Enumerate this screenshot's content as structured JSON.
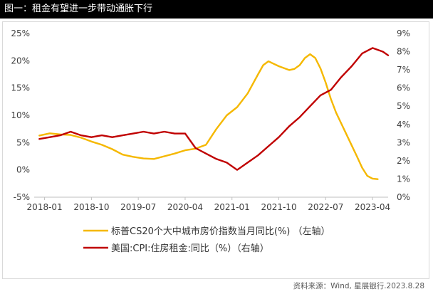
{
  "figure": {
    "title": "图一：租金有望进一步带动通胀下行",
    "source": "资料来源：Wind, 星展银行.2023.8.28"
  },
  "colors": {
    "cs20": "#F5B800",
    "cpi_rent": "#C00000",
    "axis": "#bfbfbf"
  },
  "chart_data": {
    "type": "line",
    "x_tick_labels": [
      "2018-01",
      "2018-10",
      "2019-07",
      "2020-04",
      "2021-01",
      "2021-10",
      "2022-07",
      "2023-04"
    ],
    "x_range": [
      "2017-11",
      "2023-07"
    ],
    "y_left": {
      "ticks": [
        "25%",
        "20%",
        "15%",
        "10%",
        "5%",
        "0%",
        "-5%"
      ],
      "ylim": [
        -5,
        25
      ]
    },
    "y_right": {
      "ticks": [
        "9%",
        "8%",
        "7%",
        "6%",
        "5%",
        "4%",
        "3%",
        "2%",
        "1%",
        "0%"
      ],
      "ylim": [
        0,
        9
      ]
    },
    "grid": false,
    "legend_position": "bottom",
    "series": [
      {
        "name": "标普CS20个大中城市房价指数当月同比(%) （左轴）",
        "axis": "left",
        "points": [
          [
            "2017-12",
            6.3
          ],
          [
            "2018-02",
            6.7
          ],
          [
            "2018-04",
            6.5
          ],
          [
            "2018-06",
            6.4
          ],
          [
            "2018-08",
            5.9
          ],
          [
            "2018-10",
            5.2
          ],
          [
            "2018-12",
            4.6
          ],
          [
            "2019-02",
            3.8
          ],
          [
            "2019-04",
            2.8
          ],
          [
            "2019-06",
            2.4
          ],
          [
            "2019-08",
            2.1
          ],
          [
            "2019-10",
            2.0
          ],
          [
            "2019-12",
            2.5
          ],
          [
            "2020-02",
            3.0
          ],
          [
            "2020-04",
            3.6
          ],
          [
            "2020-06",
            3.9
          ],
          [
            "2020-08",
            4.6
          ],
          [
            "2020-10",
            7.5
          ],
          [
            "2020-12",
            10.0
          ],
          [
            "2021-02",
            11.5
          ],
          [
            "2021-04",
            14.0
          ],
          [
            "2021-06",
            17.5
          ],
          [
            "2021-07",
            19.2
          ],
          [
            "2021-08",
            19.9
          ],
          [
            "2021-10",
            19.0
          ],
          [
            "2021-12",
            18.3
          ],
          [
            "2022-01",
            18.5
          ],
          [
            "2022-02",
            19.2
          ],
          [
            "2022-03",
            20.5
          ],
          [
            "2022-04",
            21.2
          ],
          [
            "2022-05",
            20.5
          ],
          [
            "2022-06",
            18.6
          ],
          [
            "2022-07",
            16.0
          ],
          [
            "2022-08",
            13.0
          ],
          [
            "2022-09",
            10.5
          ],
          [
            "2022-10",
            8.5
          ],
          [
            "2022-11",
            6.5
          ],
          [
            "2022-12",
            4.5
          ],
          [
            "2023-01",
            2.5
          ],
          [
            "2023-02",
            0.4
          ],
          [
            "2023-03",
            -1.1
          ],
          [
            "2023-04",
            -1.6
          ],
          [
            "2023-05",
            -1.7
          ]
        ]
      },
      {
        "name": "美国:CPI:住房租金:同比（%）（右轴）",
        "axis": "right",
        "points": [
          [
            "2017-12",
            3.2
          ],
          [
            "2018-02",
            3.3
          ],
          [
            "2018-04",
            3.4
          ],
          [
            "2018-06",
            3.6
          ],
          [
            "2018-08",
            3.4
          ],
          [
            "2018-10",
            3.3
          ],
          [
            "2018-12",
            3.4
          ],
          [
            "2019-02",
            3.3
          ],
          [
            "2019-04",
            3.4
          ],
          [
            "2019-06",
            3.5
          ],
          [
            "2019-08",
            3.6
          ],
          [
            "2019-10",
            3.5
          ],
          [
            "2019-12",
            3.6
          ],
          [
            "2020-02",
            3.5
          ],
          [
            "2020-04",
            3.5
          ],
          [
            "2020-06",
            2.7
          ],
          [
            "2020-08",
            2.4
          ],
          [
            "2020-10",
            2.1
          ],
          [
            "2020-12",
            1.9
          ],
          [
            "2021-02",
            1.5
          ],
          [
            "2021-04",
            1.9
          ],
          [
            "2021-06",
            2.3
          ],
          [
            "2021-08",
            2.8
          ],
          [
            "2021-10",
            3.3
          ],
          [
            "2021-12",
            3.9
          ],
          [
            "2022-02",
            4.4
          ],
          [
            "2022-04",
            5.0
          ],
          [
            "2022-06",
            5.6
          ],
          [
            "2022-08",
            5.9
          ],
          [
            "2022-10",
            6.6
          ],
          [
            "2022-12",
            7.2
          ],
          [
            "2023-02",
            7.9
          ],
          [
            "2023-04",
            8.2
          ],
          [
            "2023-06",
            8.0
          ],
          [
            "2023-07",
            7.8
          ]
        ]
      }
    ]
  }
}
